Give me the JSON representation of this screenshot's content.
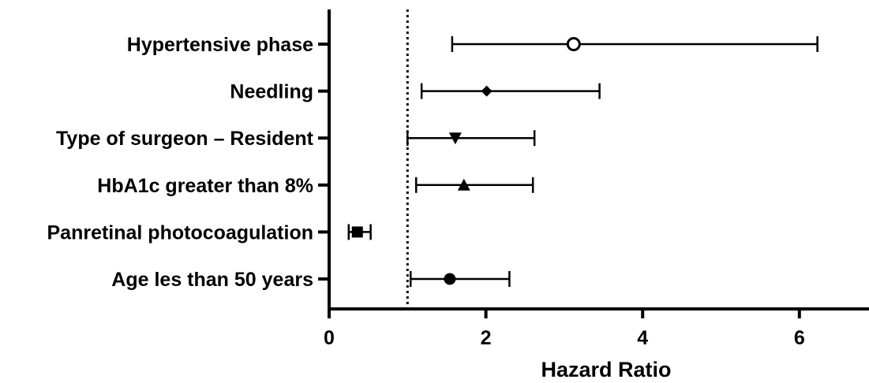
{
  "chart_data": {
    "type": "scatter",
    "subtype": "forest-plot",
    "title": "",
    "xlabel": "Hazard Ratio",
    "ylabel": "",
    "xlim": [
      0,
      6.9
    ],
    "xticks": [
      0,
      2,
      4,
      6
    ],
    "tick_labels": [
      "0",
      "2",
      "4",
      "6"
    ],
    "reference_line": 1,
    "grid": false,
    "legend": "none",
    "rows": [
      {
        "label": "Hypertensive phase",
        "hr": 3.12,
        "ci_low": 1.57,
        "ci_high": 6.23,
        "marker": "open-circle"
      },
      {
        "label": "Needling",
        "hr": 2.01,
        "ci_low": 1.18,
        "ci_high": 3.45,
        "marker": "filled-diamond"
      },
      {
        "label": "Type of surgeon – Resident",
        "hr": 1.61,
        "ci_low": 1.0,
        "ci_high": 2.62,
        "marker": "filled-triangle-down"
      },
      {
        "label": "HbA1c greater than 8%",
        "hr": 1.72,
        "ci_low": 1.11,
        "ci_high": 2.6,
        "marker": "filled-triangle-up"
      },
      {
        "label": "Panretinal photocoagulation",
        "hr": 0.36,
        "ci_low": 0.25,
        "ci_high": 0.53,
        "marker": "filled-square"
      },
      {
        "label": "Age les than 50 years",
        "hr": 1.54,
        "ci_low": 1.04,
        "ci_high": 2.3,
        "marker": "filled-circle"
      }
    ]
  }
}
